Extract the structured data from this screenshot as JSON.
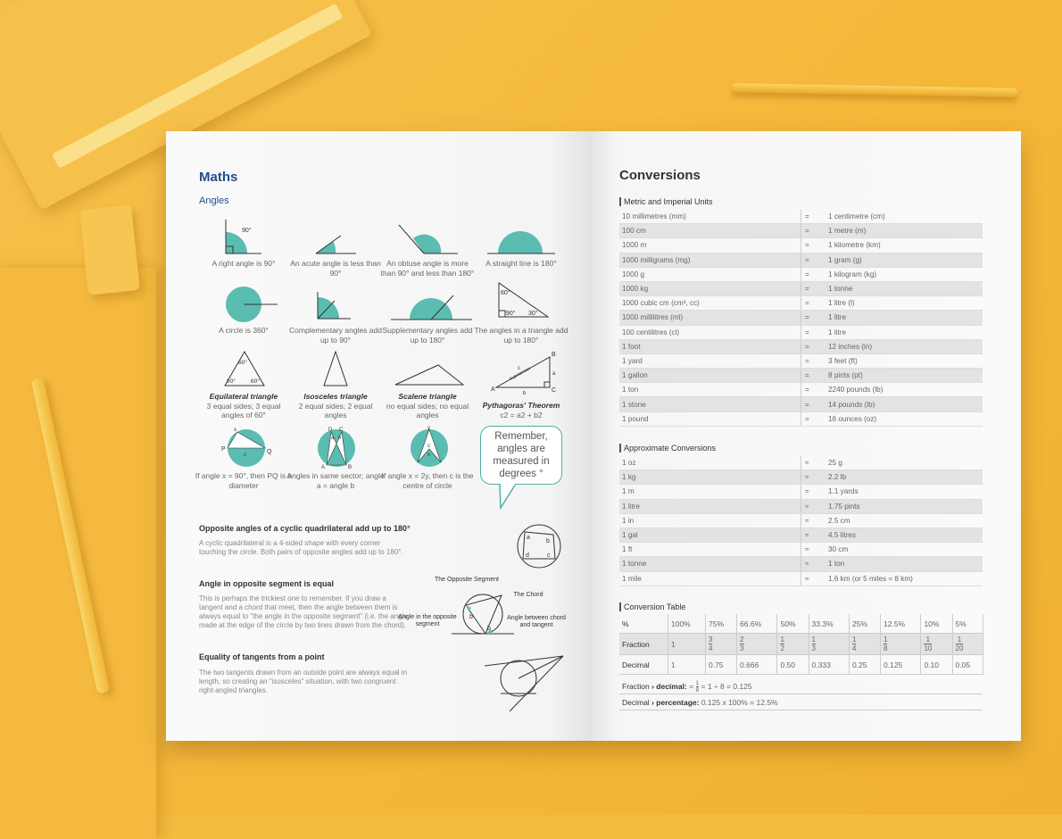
{
  "left": {
    "title": "Maths",
    "subtitle": "Angles",
    "captions": [
      "A right angle is 90°",
      "An acute angle is less than 90°",
      "An obtuse angle is more than 90° and less than 180°",
      "A straight line is 180°",
      "A circle is 360°",
      "Complementary angles add up to 90°",
      "Supplementary angles add up to 180°",
      "The angles in a triangle add up to 180°"
    ],
    "triangles": [
      {
        "name": "Equilateral triangle",
        "desc": "3 equal sides; 3 equal angles of 60°"
      },
      {
        "name": "Isosceles triangle",
        "desc": "2 equal sides; 2 equal angles"
      },
      {
        "name": "Scalene triangle",
        "desc": "no equal sides; no equal angles"
      },
      {
        "name": "Pythagoras' Theorem",
        "desc": "c2 = a2 + b2"
      }
    ],
    "circle_captions": [
      "If angle x = 90°, then PQ is a diameter",
      "Angles in same sector; angle a = angle b",
      "If angle x = 2y, then c is the centre of circle"
    ],
    "bubble": "Remember, angles are measured in degrees °",
    "fig_labels": {
      "ninety": "90°",
      "sixty": "60°",
      "thirty": "30°",
      "hyp": "hypotenuse",
      "A": "A",
      "B": "B",
      "C": "C",
      "D": "D",
      "P": "P",
      "Q": "Q",
      "a": "a",
      "b": "b",
      "c": "c",
      "d": "d",
      "x": "x",
      "y": "y"
    },
    "sections": [
      {
        "title": "Opposite angles of a cyclic quadrilateral add up to 180°",
        "text": "A cyclic quadrilateral is a 4-sided shape with every corner touching the circle. Both pairs of opposite angles add up to 180°."
      },
      {
        "title": "Angle in opposite segment is equal",
        "text": "This is perhaps the trickiest one to remember. If you draw a tangent and a chord that meet, then the angle between them is always equal to \"the angle in the opposite segment\" (i.e. the angle made at the edge of the circle by two lines drawn from the chord)."
      },
      {
        "title": "Equality of tangents from a point",
        "text": "The two tangents drawn from an outside point are always equal in length, so creating an \"isosceles\" situation, with two congruent right-angled triangles."
      }
    ],
    "segment_labels": {
      "opp": "The Opposite Segment",
      "chord": "The Chord",
      "angle_opp": "Angle in the opposite segment",
      "angle_between": "Angle between chord and tangent"
    }
  },
  "right": {
    "title": "Conversions",
    "metric_title": "Metric and Imperial Units",
    "metric_rows": [
      [
        "10 millimetres (mm)",
        "=",
        "1 centimetre (cm)"
      ],
      [
        "100 cm",
        "=",
        "1 metre (m)"
      ],
      [
        "1000 m",
        "=",
        "1 kilometre (km)"
      ],
      [
        "1000 milligrams (mg)",
        "=",
        "1 gram (g)"
      ],
      [
        "1000 g",
        "=",
        "1 kilogram (kg)"
      ],
      [
        "1000 kg",
        "=",
        "1 tonne"
      ],
      [
        "1000 cubic cm (cm³, cc)",
        "=",
        "1 litre (l)"
      ],
      [
        "1000 millilitres (ml)",
        "=",
        "1 litre"
      ],
      [
        "100 centilitres (cl)",
        "=",
        "1 litre"
      ],
      [
        "1 foot",
        "=",
        "12 inches (in)"
      ],
      [
        "1 yard",
        "=",
        "3 feet (ft)"
      ],
      [
        "1 gallon",
        "=",
        "8 pints (pt)"
      ],
      [
        "1 ton",
        "=",
        "2240 pounds (lb)"
      ],
      [
        "1 stone",
        "=",
        "14 pounds (lb)"
      ],
      [
        "1 pound",
        "=",
        "16 ounces (oz)"
      ]
    ],
    "approx_title": "Approximate Conversions",
    "approx_rows": [
      [
        "1 oz",
        "≈",
        "25 g"
      ],
      [
        "1 kg",
        "≈",
        "2.2 lb"
      ],
      [
        "1 m",
        "≈",
        "1.1 yards"
      ],
      [
        "1 litre",
        "≈",
        "1.75 pints"
      ],
      [
        "1 in",
        "≈",
        "2.5 cm"
      ],
      [
        "1 gal",
        "≈",
        "4.5 litres"
      ],
      [
        "1 ft",
        "≈",
        "30 cm"
      ],
      [
        "1 tonne",
        "≈",
        "1 ton"
      ],
      [
        "1 mile",
        "≈",
        "1.6 km (or 5 miles = 8 km)"
      ]
    ],
    "conv_title": "Conversion Table",
    "conv_percent_label": "%",
    "conv_percent": [
      "100%",
      "75%",
      "66.6%",
      "50%",
      "33.3%",
      "25%",
      "12.5%",
      "10%",
      "5%"
    ],
    "conv_fraction_label": "Fraction",
    "conv_whole": "1",
    "conv_fractions": [
      [
        "3",
        "4"
      ],
      [
        "2",
        "3"
      ],
      [
        "1",
        "2"
      ],
      [
        "1",
        "3"
      ],
      [
        "1",
        "4"
      ],
      [
        "1",
        "8"
      ],
      [
        "1",
        "10"
      ],
      [
        "1",
        "20"
      ]
    ],
    "conv_decimal_label": "Decimal",
    "conv_decimal": [
      "1",
      "0.75",
      "0.666",
      "0.50",
      "0.333",
      "0.25",
      "0.125",
      "0.10",
      "0.05"
    ],
    "rule1_a": "Fraction",
    "rule1_b": "› decimal:",
    "rule1_num": "1",
    "rule1_den": "8",
    "rule1_c": "= 1 ÷ 8 = 0.125",
    "rule1_pre": "=",
    "rule2_a": "Decimal",
    "rule2_b": "› percentage:",
    "rule2_c": "0.125 x 100% = 12.5%"
  },
  "colors": {
    "teal": "#5bbcb1",
    "title_blue": "#1f4f8f",
    "desk": "#f5bb3f"
  }
}
